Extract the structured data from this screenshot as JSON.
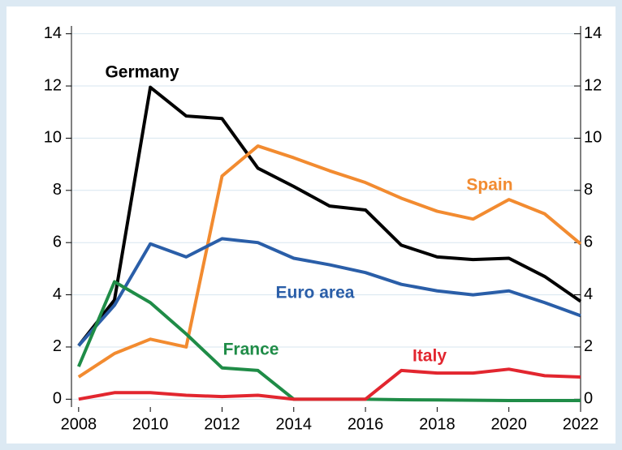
{
  "chart_data": {
    "type": "line",
    "x": [
      2008,
      2009,
      2010,
      2011,
      2012,
      2013,
      2014,
      2015,
      2016,
      2017,
      2018,
      2019,
      2020,
      2021,
      2022
    ],
    "series": [
      {
        "name": "Germany",
        "color": "#000000",
        "values": [
          2.05,
          3.8,
          11.95,
          10.85,
          10.75,
          8.85,
          8.15,
          7.4,
          7.25,
          5.9,
          5.45,
          5.35,
          5.4,
          4.7,
          3.75
        ]
      },
      {
        "name": "Spain",
        "color": "#f28b30",
        "values": [
          0.85,
          1.75,
          2.3,
          2.0,
          8.55,
          9.7,
          9.25,
          8.75,
          8.3,
          7.7,
          7.2,
          6.9,
          7.65,
          7.1,
          5.95
        ]
      },
      {
        "name": "Euro area",
        "color": "#2a5ea8",
        "values": [
          2.05,
          3.6,
          5.95,
          5.45,
          6.15,
          6.0,
          5.4,
          5.15,
          4.85,
          4.4,
          4.15,
          4.0,
          4.15,
          3.7,
          3.2
        ]
      },
      {
        "name": "France",
        "color": "#1f8c47",
        "values": [
          1.25,
          4.5,
          3.7,
          2.5,
          1.2,
          1.1,
          0.0,
          0.0,
          0.0,
          -0.02,
          -0.03,
          -0.04,
          -0.05,
          -0.05,
          -0.05
        ]
      },
      {
        "name": "Italy",
        "color": "#e2262f",
        "values": [
          0.0,
          0.25,
          0.25,
          0.15,
          0.1,
          0.15,
          0.0,
          0.0,
          0.0,
          1.1,
          1.0,
          1.0,
          1.15,
          0.9,
          0.85
        ]
      }
    ],
    "xlim": [
      2007.8,
      2022
    ],
    "xticks": [
      2008,
      2010,
      2012,
      2014,
      2016,
      2018,
      2020,
      2022
    ],
    "ylim": [
      -0.3,
      14.3
    ],
    "yticks": [
      0,
      2,
      4,
      6,
      8,
      10,
      12,
      14
    ],
    "y2lim": [
      -0.3,
      14.3
    ],
    "y2ticks": [
      0,
      2,
      4,
      6,
      8,
      10,
      12,
      14
    ],
    "grid": true
  }
}
